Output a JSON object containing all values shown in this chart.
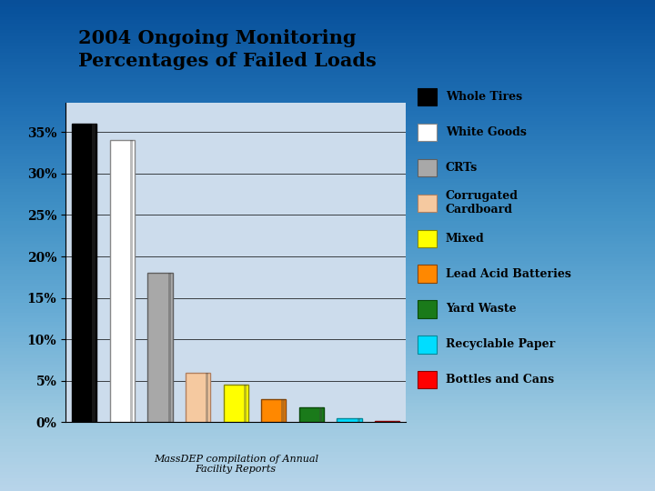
{
  "title": "2004 Ongoing Monitoring\nPercentages of Failed Loads",
  "subtitle": "MassDEP compilation of Annual\nFacility Reports",
  "categories": [
    "Whole Tires",
    "White Goods",
    "CRTs",
    "Corrugated Cardboard",
    "Mixed",
    "Lead Acid Batteries",
    "Yard Waste",
    "Recyclable Paper",
    "Bottles and Cans"
  ],
  "values": [
    0.36,
    0.34,
    0.18,
    0.06,
    0.045,
    0.028,
    0.018,
    0.005,
    0.002
  ],
  "bar_colors": [
    "#000000",
    "#ffffff",
    "#a8a8a8",
    "#f5c9a0",
    "#ffff00",
    "#ff8800",
    "#1a7a1a",
    "#00ddff",
    "#ff0000"
  ],
  "bar_edge_colors": [
    "#000000",
    "#888888",
    "#606060",
    "#b08060",
    "#888800",
    "#884400",
    "#0a4a0a",
    "#008899",
    "#880000"
  ],
  "ylim": [
    0,
    0.385
  ],
  "yticks": [
    0.0,
    0.05,
    0.1,
    0.15,
    0.2,
    0.25,
    0.3,
    0.35
  ],
  "ytick_labels": [
    "0%",
    "5%",
    "10%",
    "15%",
    "20%",
    "25%",
    "30%",
    "35%"
  ],
  "legend_labels": [
    "Whole Tires",
    "White Goods",
    "CRTs",
    "Corrugated\nCardboard",
    "Mixed",
    "Lead Acid Batteries",
    "Yard Waste",
    "Recyclable Paper",
    "Bottles and Cans"
  ],
  "bg_color": "#b8d4ec",
  "title_fontsize": 15,
  "subtitle_fontsize": 8,
  "ytick_fontsize": 10,
  "legend_fontsize": 9
}
